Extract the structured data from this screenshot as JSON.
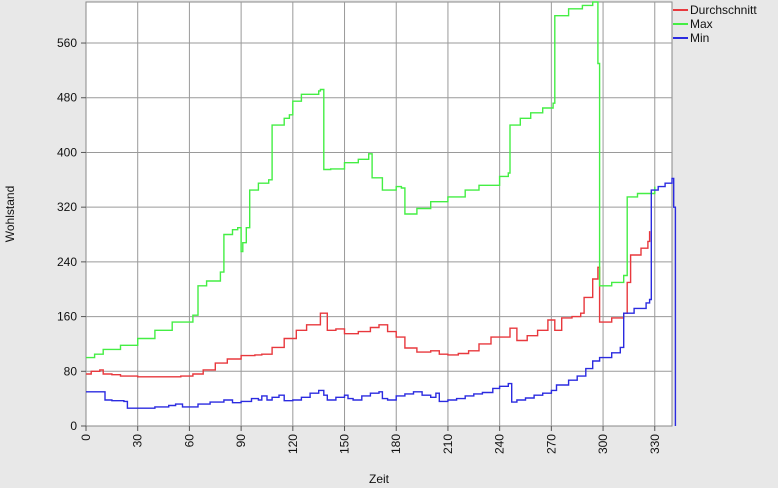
{
  "chart_data": {
    "type": "line",
    "title": "",
    "xlabel": "Zeit",
    "ylabel": "Wohlstand",
    "xlim": [
      0,
      340
    ],
    "ylim": [
      0,
      620
    ],
    "x_ticks": [
      0,
      30,
      60,
      90,
      120,
      150,
      180,
      210,
      240,
      270,
      300,
      330
    ],
    "x_tick_labels": [
      "0",
      "30",
      "60",
      "90",
      "120",
      "150",
      "180",
      "210",
      "240",
      "270",
      "300",
      "330"
    ],
    "y_ticks": [
      0,
      80,
      160,
      240,
      320,
      400,
      480,
      560
    ],
    "y_tick_labels": [
      "0",
      "80",
      "160",
      "240",
      "320",
      "400",
      "480",
      "560"
    ],
    "grid": true,
    "legend_position": "top-right",
    "series": [
      {
        "name": "Durchschnitt",
        "color": "#e8383d",
        "points": [
          [
            0,
            76
          ],
          [
            3,
            80
          ],
          [
            8,
            82
          ],
          [
            10,
            76
          ],
          [
            15,
            75
          ],
          [
            20,
            73
          ],
          [
            30,
            72
          ],
          [
            45,
            72
          ],
          [
            55,
            73
          ],
          [
            62,
            76
          ],
          [
            68,
            82
          ],
          [
            75,
            92
          ],
          [
            82,
            98
          ],
          [
            90,
            103
          ],
          [
            98,
            104
          ],
          [
            102,
            105
          ],
          [
            108,
            115
          ],
          [
            115,
            128
          ],
          [
            122,
            140
          ],
          [
            128,
            148
          ],
          [
            133,
            148
          ],
          [
            136,
            165
          ],
          [
            140,
            140
          ],
          [
            145,
            142
          ],
          [
            150,
            135
          ],
          [
            158,
            138
          ],
          [
            165,
            144
          ],
          [
            170,
            148
          ],
          [
            175,
            138
          ],
          [
            180,
            130
          ],
          [
            185,
            114
          ],
          [
            192,
            108
          ],
          [
            200,
            110
          ],
          [
            205,
            105
          ],
          [
            210,
            104
          ],
          [
            216,
            106
          ],
          [
            222,
            110
          ],
          [
            228,
            120
          ],
          [
            235,
            130
          ],
          [
            240,
            130
          ],
          [
            246,
            143
          ],
          [
            250,
            125
          ],
          [
            256,
            132
          ],
          [
            262,
            140
          ],
          [
            268,
            155
          ],
          [
            272,
            140
          ],
          [
            276,
            158
          ],
          [
            282,
            160
          ],
          [
            287,
            165
          ],
          [
            289,
            188
          ],
          [
            294,
            215
          ],
          [
            297,
            232
          ],
          [
            298,
            152
          ],
          [
            305,
            158
          ],
          [
            312,
            165
          ],
          [
            314,
            210
          ],
          [
            316,
            250
          ],
          [
            322,
            260
          ],
          [
            326,
            270
          ],
          [
            327,
            285
          ]
        ]
      },
      {
        "name": "Max",
        "color": "#44ee44",
        "points": [
          [
            0,
            100
          ],
          [
            5,
            105
          ],
          [
            10,
            112
          ],
          [
            20,
            118
          ],
          [
            30,
            128
          ],
          [
            40,
            140
          ],
          [
            50,
            152
          ],
          [
            62,
            162
          ],
          [
            64,
            162
          ],
          [
            65,
            205
          ],
          [
            70,
            212
          ],
          [
            78,
            225
          ],
          [
            80,
            280
          ],
          [
            85,
            287
          ],
          [
            88,
            290
          ],
          [
            90,
            255
          ],
          [
            91,
            268
          ],
          [
            93,
            290
          ],
          [
            95,
            345
          ],
          [
            100,
            355
          ],
          [
            106,
            360
          ],
          [
            108,
            440
          ],
          [
            115,
            450
          ],
          [
            118,
            455
          ],
          [
            120,
            475
          ],
          [
            125,
            485
          ],
          [
            135,
            490
          ],
          [
            136,
            492
          ],
          [
            138,
            375
          ],
          [
            142,
            376
          ],
          [
            150,
            385
          ],
          [
            158,
            390
          ],
          [
            164,
            398
          ],
          [
            166,
            363
          ],
          [
            171,
            363
          ],
          [
            172,
            345
          ],
          [
            178,
            345
          ],
          [
            180,
            350
          ],
          [
            183,
            348
          ],
          [
            185,
            310
          ],
          [
            192,
            318
          ],
          [
            200,
            328
          ],
          [
            210,
            335
          ],
          [
            220,
            345
          ],
          [
            228,
            352
          ],
          [
            240,
            365
          ],
          [
            245,
            370
          ],
          [
            246,
            440
          ],
          [
            252,
            450
          ],
          [
            258,
            458
          ],
          [
            265,
            465
          ],
          [
            271,
            472
          ],
          [
            272,
            600
          ],
          [
            280,
            610
          ],
          [
            288,
            615
          ],
          [
            294,
            620
          ],
          [
            296,
            620
          ],
          [
            297,
            530
          ],
          [
            298,
            205
          ],
          [
            305,
            210
          ],
          [
            312,
            220
          ],
          [
            314,
            335
          ],
          [
            320,
            340
          ],
          [
            330,
            350
          ]
        ]
      },
      {
        "name": "Min",
        "color": "#2b2be0",
        "points": [
          [
            0,
            50
          ],
          [
            6,
            50
          ],
          [
            9,
            50
          ],
          [
            11,
            38
          ],
          [
            15,
            37
          ],
          [
            22,
            36
          ],
          [
            24,
            26
          ],
          [
            30,
            26
          ],
          [
            40,
            28
          ],
          [
            48,
            30
          ],
          [
            52,
            32
          ],
          [
            56,
            28
          ],
          [
            65,
            32
          ],
          [
            72,
            35
          ],
          [
            80,
            38
          ],
          [
            85,
            34
          ],
          [
            90,
            36
          ],
          [
            96,
            40
          ],
          [
            100,
            38
          ],
          [
            102,
            44
          ],
          [
            105,
            38
          ],
          [
            108,
            42
          ],
          [
            112,
            45
          ],
          [
            115,
            37
          ],
          [
            120,
            38
          ],
          [
            125,
            42
          ],
          [
            130,
            48
          ],
          [
            135,
            52
          ],
          [
            138,
            45
          ],
          [
            140,
            38
          ],
          [
            145,
            42
          ],
          [
            150,
            45
          ],
          [
            152,
            40
          ],
          [
            155,
            38
          ],
          [
            160,
            44
          ],
          [
            165,
            48
          ],
          [
            170,
            50
          ],
          [
            172,
            40
          ],
          [
            175,
            38
          ],
          [
            180,
            44
          ],
          [
            185,
            47
          ],
          [
            190,
            50
          ],
          [
            195,
            45
          ],
          [
            200,
            42
          ],
          [
            203,
            48
          ],
          [
            205,
            36
          ],
          [
            210,
            38
          ],
          [
            215,
            40
          ],
          [
            220,
            44
          ],
          [
            225,
            47
          ],
          [
            230,
            49
          ],
          [
            236,
            55
          ],
          [
            240,
            58
          ],
          [
            245,
            62
          ],
          [
            247,
            35
          ],
          [
            250,
            38
          ],
          [
            255,
            41
          ],
          [
            260,
            45
          ],
          [
            265,
            48
          ],
          [
            270,
            52
          ],
          [
            273,
            60
          ],
          [
            280,
            67
          ],
          [
            285,
            73
          ],
          [
            290,
            84
          ],
          [
            294,
            95
          ],
          [
            298,
            100
          ],
          [
            305,
            107
          ],
          [
            310,
            115
          ],
          [
            312,
            165
          ],
          [
            318,
            172
          ],
          [
            325,
            180
          ],
          [
            327,
            185
          ],
          [
            328,
            345
          ],
          [
            332,
            350
          ],
          [
            336,
            355
          ],
          [
            340,
            362
          ],
          [
            341,
            320
          ],
          [
            342,
            140
          ],
          [
            342,
            10
          ],
          [
            342,
            0
          ]
        ]
      }
    ]
  }
}
